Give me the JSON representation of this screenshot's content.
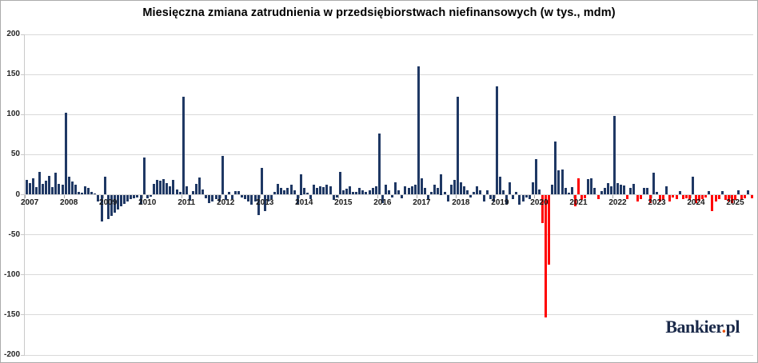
{
  "title": "Miesięczna zmiana zatrudnienia w przedsiębiorstwach niefinansowych (w tys., mdm)",
  "logo": {
    "part1": "Bankier",
    "dot": ".",
    "part2": "pl"
  },
  "chart_data": {
    "type": "bar",
    "title": "Miesięczna zmiana zatrudnienia w przedsiębiorstwach niefinansowych (w tys., mdm)",
    "xlabel": "",
    "ylabel": "",
    "ylim": [
      -200,
      200
    ],
    "yticks": [
      200,
      150,
      100,
      50,
      0,
      -50,
      -100,
      -150,
      -200
    ],
    "grid": true,
    "legend": "none",
    "unit": "tys. osób, zmiana miesiąc do miesiąca",
    "bar_colors": {
      "navy": "#1f3864",
      "red": "#ff0000"
    },
    "color_key": "n = navy, r = red",
    "years": [
      {
        "year": 2007,
        "values": [
          18,
          14,
          20,
          9,
          28,
          13,
          17,
          23,
          9,
          27,
          13,
          12
        ],
        "colors": "nnnnnnnnnnnn"
      },
      {
        "year": 2008,
        "values": [
          102,
          22,
          16,
          12,
          3,
          2,
          10,
          8,
          3,
          1,
          -8,
          -33
        ],
        "colors": "nnnnnnnnnnnn"
      },
      {
        "year": 2009,
        "values": [
          22,
          -30,
          -26,
          -22,
          -18,
          -14,
          -11,
          -8,
          -5,
          -4,
          -3,
          -12
        ],
        "colors": "nnnnnnnnnnnn"
      },
      {
        "year": 2010,
        "values": [
          46,
          -4,
          -2,
          13,
          18,
          17,
          19,
          14,
          10,
          18,
          6,
          3
        ],
        "colors": "nnnnnnnnnnnn"
      },
      {
        "year": 2011,
        "values": [
          122,
          10,
          -7,
          4,
          13,
          21,
          6,
          -4,
          -10,
          -8,
          -5,
          -8
        ],
        "colors": "nnnnnnnnnnnn"
      },
      {
        "year": 2012,
        "values": [
          48,
          -6,
          3,
          -5,
          4,
          4,
          -3,
          -5,
          -8,
          -12,
          -8,
          -25
        ],
        "colors": "nnnnnnnnnnnn"
      },
      {
        "year": 2013,
        "values": [
          33,
          -20,
          -8,
          -5,
          3,
          13,
          8,
          5,
          8,
          12,
          5,
          -12
        ],
        "colors": "nnnnnnnnnnnn"
      },
      {
        "year": 2014,
        "values": [
          25,
          8,
          2,
          -5,
          12,
          8,
          10,
          9,
          12,
          10,
          -6,
          -3
        ],
        "colors": "nnnnnnnnnnnn"
      },
      {
        "year": 2015,
        "values": [
          28,
          5,
          7,
          10,
          3,
          3,
          8,
          5,
          3,
          5,
          8,
          10
        ],
        "colors": "nnnnnnnnnnnn"
      },
      {
        "year": 2016,
        "values": [
          76,
          -10,
          12,
          5,
          -3,
          15,
          5,
          -4,
          10,
          8,
          10,
          12
        ],
        "colors": "nnnnnnnnnnnn"
      },
      {
        "year": 2017,
        "values": [
          160,
          20,
          8,
          -5,
          3,
          12,
          8,
          25,
          3,
          -8,
          12,
          18
        ],
        "colors": "nnnnnnnnnnnn"
      },
      {
        "year": 2018,
        "values": [
          122,
          15,
          10,
          5,
          -3,
          3,
          10,
          5,
          -8,
          5,
          -5,
          -8
        ],
        "colors": "nnnnnnnnnnnn"
      },
      {
        "year": 2019,
        "values": [
          135,
          22,
          5,
          -12,
          15,
          -5,
          3,
          -12,
          -8,
          -3,
          -5,
          15
        ],
        "colors": "nnnnnnnnnnnn"
      },
      {
        "year": 2020,
        "values": [
          44,
          6,
          -35,
          -153,
          -87,
          12,
          66,
          30,
          31,
          8,
          2,
          9
        ],
        "colors": "nnrrrnnnnnnn"
      },
      {
        "year": 2021,
        "values": [
          -14,
          20,
          -6,
          -4,
          19,
          20,
          8,
          -5,
          4,
          8,
          14,
          10
        ],
        "colors": "rrrrnnnrnnnn"
      },
      {
        "year": 2022,
        "values": [
          98,
          14,
          12,
          11,
          -5,
          8,
          13,
          -8,
          -5,
          8,
          8,
          -10
        ],
        "colors": "nnnnrnnrrnnr"
      },
      {
        "year": 2023,
        "values": [
          27,
          3,
          -8,
          -6,
          10,
          -8,
          -3,
          -5,
          4,
          -5,
          -4,
          -6
        ],
        "colors": "nnrrnrrrnrrr"
      },
      {
        "year": 2024,
        "values": [
          22,
          -10,
          -7,
          -5,
          -3,
          4,
          -20,
          -8,
          -5,
          4,
          -6,
          -8
        ],
        "colors": "nrrrrnrrrnrr"
      },
      {
        "year": 2025,
        "values": [
          -10,
          -6,
          5,
          -5,
          -4,
          5,
          -4
        ],
        "colors": "rrnrrnr"
      }
    ]
  }
}
